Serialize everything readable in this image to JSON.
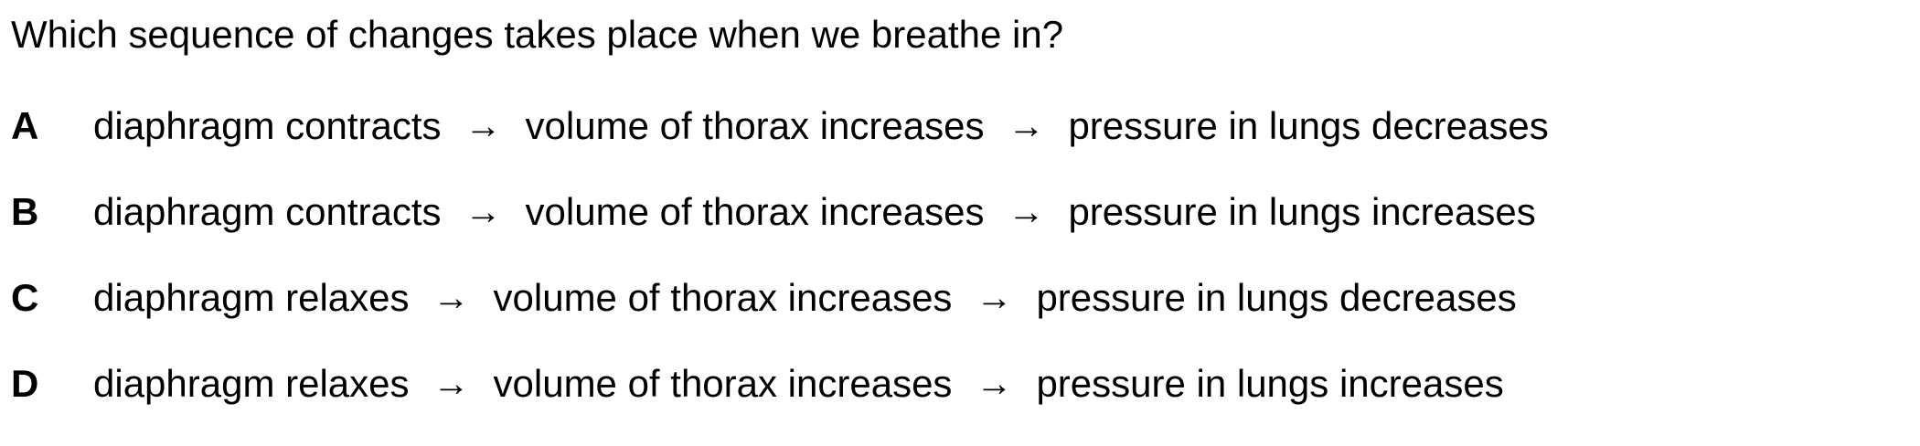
{
  "question": "Which sequence of changes takes place when we breathe in?",
  "arrow": "→",
  "options": [
    {
      "letter": "A",
      "steps": [
        "diaphragm contracts",
        "volume of thorax increases",
        "pressure in lungs decreases"
      ]
    },
    {
      "letter": "B",
      "steps": [
        "diaphragm contracts",
        "volume of thorax increases",
        "pressure in lungs increases"
      ]
    },
    {
      "letter": "C",
      "steps": [
        "diaphragm relaxes",
        "volume of thorax increases",
        "pressure in lungs decreases"
      ]
    },
    {
      "letter": "D",
      "steps": [
        "diaphragm relaxes",
        "volume of thorax increases",
        "pressure in lungs increases"
      ]
    }
  ]
}
